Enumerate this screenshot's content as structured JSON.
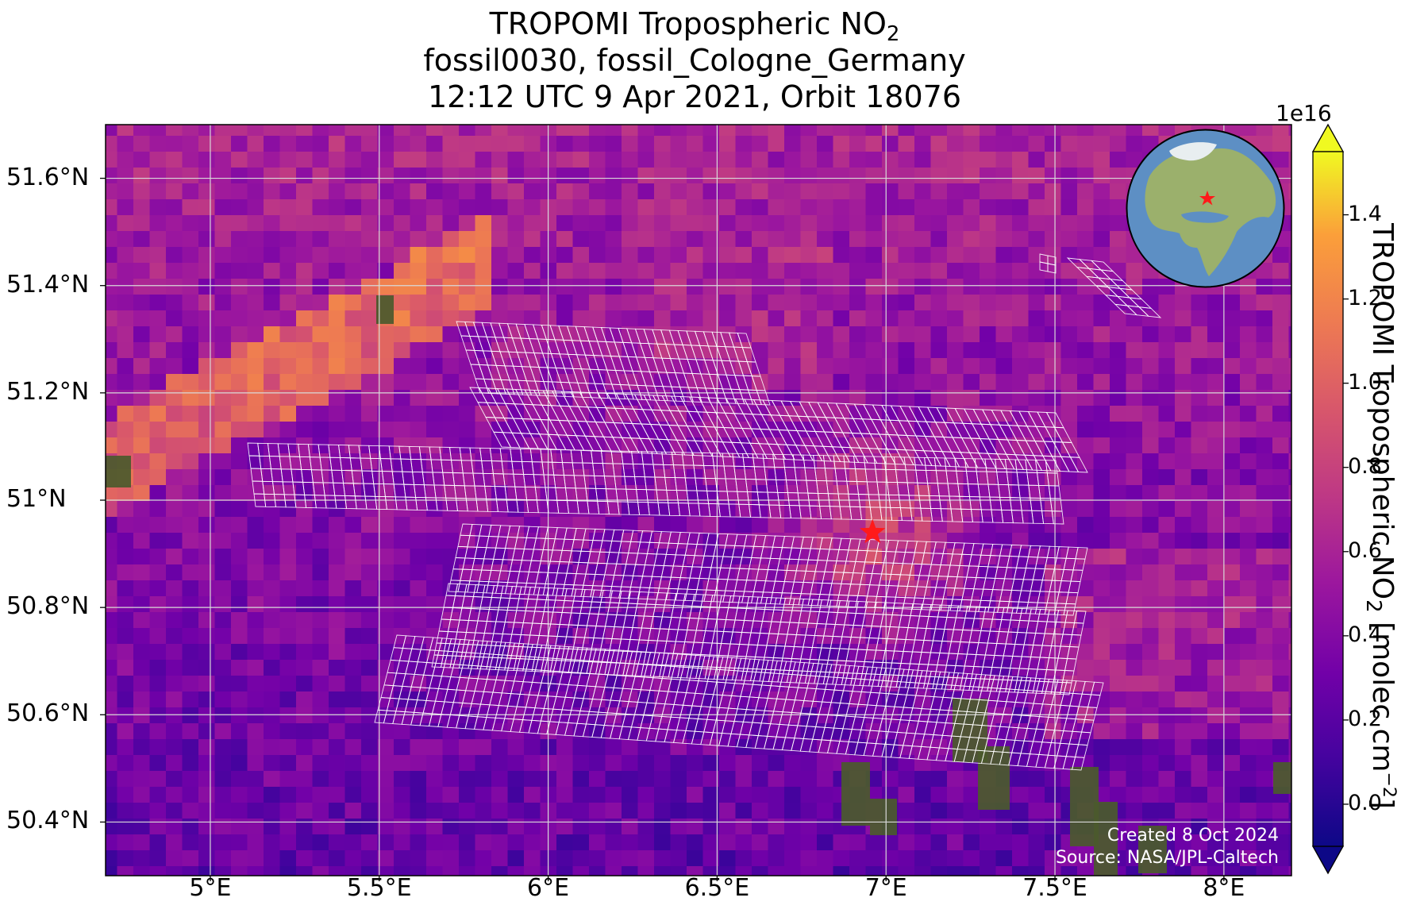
{
  "title": {
    "line1_main": "TROPOMI Tropospheric NO",
    "line1_sub": "2",
    "line2": "fossil0030, fossil_Cologne_Germany",
    "line3": "12:12 UTC 9 Apr 2021, Orbit 18076"
  },
  "map": {
    "lon_range": [
      4.69,
      8.2
    ],
    "lat_range": [
      50.3,
      51.7
    ],
    "x_ticks": [
      "5°E",
      "5.5°E",
      "6°E",
      "6.5°E",
      "7°E",
      "7.5°E",
      "8°E"
    ],
    "x_tick_values": [
      5.0,
      5.5,
      6.0,
      6.5,
      7.0,
      7.5,
      8.0
    ],
    "y_ticks": [
      "51.6°N",
      "51.4°N",
      "51.2°N",
      "51°N",
      "50.8°N",
      "50.6°N",
      "50.4°N"
    ],
    "y_tick_values": [
      51.6,
      51.4,
      51.2,
      51.0,
      50.8,
      50.6,
      50.4
    ],
    "target_marker": {
      "name": "Cologne",
      "lon": 6.96,
      "lat": 50.94,
      "symbol": "star",
      "color": "#ff1a1a"
    },
    "gridlines": true,
    "colormap": "plasma"
  },
  "colorbar": {
    "exponent": "1e16",
    "ticks": [
      "0.0",
      "0.2",
      "0.4",
      "0.6",
      "0.8",
      "1.0",
      "1.2",
      "1.4"
    ],
    "tick_values": [
      0.0,
      0.2,
      0.4,
      0.6,
      0.8,
      1.0,
      1.2,
      1.4
    ],
    "range": [
      -0.1,
      1.55
    ],
    "extend": "both",
    "label_main": "TROPOMI Tropospheric NO",
    "label_sub": "2",
    "label_unit_a": " [molec cm",
    "label_sup": "−2",
    "label_unit_b": "]"
  },
  "credits": {
    "created": "Created 8 Oct 2024",
    "source": "Source: NASA/JPL-Caltech"
  },
  "colors": {
    "overlay_grid": "#ffffff",
    "star": "#ff1a1a",
    "ocean": "#4f7fb8",
    "land": "#8fae6a"
  }
}
